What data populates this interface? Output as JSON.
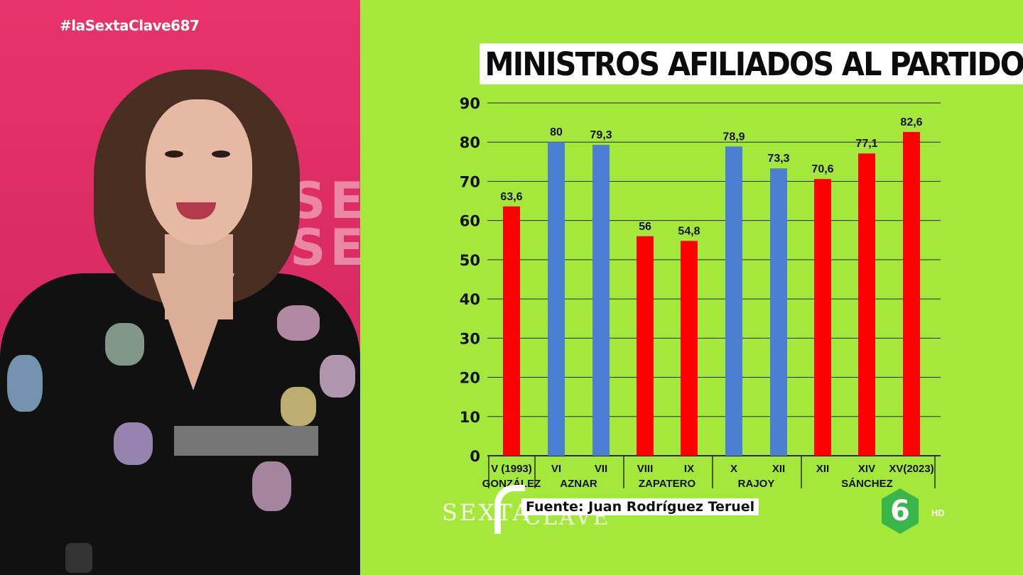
{
  "broadcast": {
    "hashtag": "#laSextaClave687",
    "bg_letters": [
      "SEX",
      "SEX"
    ],
    "program_logo": {
      "part1": "SEXTA",
      "part2": "CLAVE"
    },
    "channel_logo": {
      "name": "laSexta",
      "symbol": "6",
      "quality": "HD"
    },
    "source": "Fuente: Juan Rodríguez Teruel"
  },
  "colors": {
    "background": "#a5e83c",
    "psoe": "#ff0000",
    "pp": "#4a7fd4",
    "left_panel": "#e8336c"
  },
  "chart_data": {
    "type": "bar",
    "title": "MINISTROS AFILIADOS AL PARTIDO",
    "ylim": [
      0,
      90
    ],
    "yticks": [
      0,
      10,
      20,
      30,
      40,
      50,
      60,
      70,
      80,
      90
    ],
    "grid": true,
    "categories": [
      "V (1993)",
      "VI",
      "VII",
      "VIII",
      "IX",
      "X",
      "XII",
      "XII",
      "XIV",
      "XV(2023)"
    ],
    "values": [
      63.6,
      80,
      79.3,
      56,
      54.8,
      78.9,
      73.3,
      70.6,
      77.1,
      82.6
    ],
    "value_labels": [
      "63,6",
      "80",
      "79,3",
      "56",
      "54,8",
      "78,9",
      "73,3",
      "70,6",
      "77,1",
      "82,6"
    ],
    "bar_colors": [
      "#ff0000",
      "#4a7fd4",
      "#4a7fd4",
      "#ff0000",
      "#ff0000",
      "#4a7fd4",
      "#4a7fd4",
      "#ff0000",
      "#ff0000",
      "#ff0000"
    ],
    "groups": [
      {
        "label": "GONZÁLEZ",
        "bars": [
          0
        ]
      },
      {
        "label": "AZNAR",
        "bars": [
          1,
          2
        ]
      },
      {
        "label": "ZAPATERO",
        "bars": [
          3,
          4
        ]
      },
      {
        "label": "RAJOY",
        "bars": [
          5,
          6
        ]
      },
      {
        "label": "SÁNCHEZ",
        "bars": [
          7,
          8,
          9
        ]
      }
    ]
  }
}
